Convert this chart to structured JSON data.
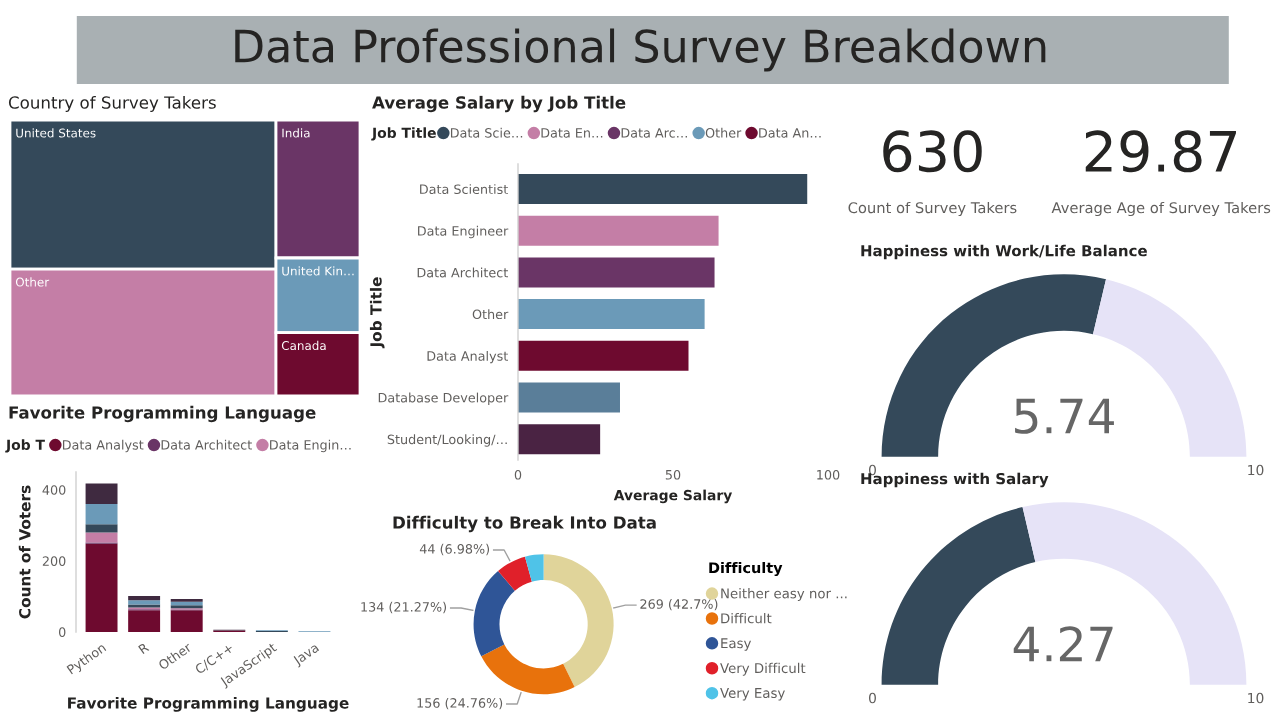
{
  "chart_data": [
    {
      "type": "other",
      "title": "Data Professional Survey Breakdown"
    },
    {
      "type": "other",
      "title": "Country of Survey Takers",
      "categories": [
        "United States",
        "Other",
        "India",
        "United Kin…",
        "Canada"
      ],
      "colors": [
        "#34495a",
        "#c47ea6",
        "#6a3566",
        "#6b9ab8",
        "#6e0a2f"
      ]
    },
    {
      "type": "bar",
      "orientation": "horizontal",
      "stacked": true,
      "title": "Average Salary by Job Title",
      "xlabel": "Average Salary",
      "ylabel": "Job Title",
      "legend_title": "Job Title",
      "legend": "top",
      "categories": [
        "Data Scientist",
        "Data Engineer",
        "Data Architect",
        "Other",
        "Data Analyst",
        "Database Developer",
        "Student/Looking/…"
      ],
      "xlim": [
        0,
        100
      ],
      "xticks": [
        0,
        50,
        100
      ],
      "series": [
        {
          "name": "Data Scie…",
          "color": "#34495a",
          "values": [
            93.3,
            null,
            null,
            null,
            null,
            null,
            null
          ]
        },
        {
          "name": "Data En…",
          "color": "#c47ea6",
          "values": [
            null,
            64.7,
            null,
            null,
            null,
            null,
            null
          ]
        },
        {
          "name": "Data Arc…",
          "color": "#6a3566",
          "values": [
            null,
            null,
            63.4,
            null,
            null,
            null,
            null
          ]
        },
        {
          "name": "Other",
          "color": "#6b9ab8",
          "values": [
            null,
            null,
            null,
            60.2,
            null,
            null,
            null
          ]
        },
        {
          "name": "Data An…",
          "color": "#6e0a2f",
          "values": [
            null,
            null,
            null,
            null,
            55.0,
            null,
            null
          ]
        },
        {
          "color": "#5a7e99",
          "values": [
            null,
            null,
            null,
            null,
            null,
            32.9,
            null
          ]
        },
        {
          "color": "#4a2343",
          "values": [
            null,
            null,
            null,
            null,
            null,
            null,
            26.5
          ]
        }
      ]
    },
    {
      "type": "other",
      "annotations": [
        "630",
        "Count of Survey Takers",
        "29.87",
        "Average Age of Survey Takers"
      ]
    },
    {
      "type": "other",
      "title": "Happiness with Work/Life Balance",
      "values": [
        5.74
      ],
      "colors": [
        "#34495a"
      ],
      "annotations": [
        "0",
        "10"
      ],
      "data_labels": true
    },
    {
      "type": "bar",
      "stacked": true,
      "title": "Favorite Programming Language",
      "xlabel": "Favorite Programming Language",
      "ylabel": "Count of Voters",
      "legend_title": "Job T",
      "legend": "top",
      "categories": [
        "Python",
        "R",
        "Other",
        "C/C++",
        "JavaScript",
        "Java"
      ],
      "ylim": [
        0,
        450
      ],
      "yticks": [
        0,
        200,
        400
      ],
      "series": [
        {
          "name": "Data Analyst",
          "color": "#6e0a2f",
          "values": [
            248,
            61,
            61,
            4,
            null,
            null
          ]
        },
        {
          "name": "Data Architect",
          "color": "#6a3566",
          "values": [
            4,
            3,
            2,
            null,
            null,
            null
          ]
        },
        {
          "name": "Data Engin…",
          "color": "#c47ea6",
          "values": [
            28,
            5,
            4,
            null,
            null,
            null
          ]
        },
        {
          "color": "#34495a",
          "values": [
            23,
            8,
            8,
            null,
            3,
            null
          ]
        },
        {
          "color": "#6b9ab8",
          "values": [
            57,
            12,
            10,
            null,
            2,
            2
          ]
        },
        {
          "color": "#3f2a40",
          "values": [
            58,
            12,
            8,
            2,
            null,
            null
          ]
        }
      ]
    },
    {
      "type": "donut",
      "title": "Difficulty to Break Into Data",
      "legend_title": "Difficulty",
      "legend": "right",
      "categories": [
        "Neither easy nor ...",
        "Difficult",
        "Easy",
        "Very Difficult",
        "Very Easy"
      ],
      "values": [
        269,
        156,
        134,
        44,
        27
      ],
      "colors": [
        "#e0d49a",
        "#e8720c",
        "#2f5597",
        "#e0202a",
        "#4fc3e8"
      ],
      "value_labels": [
        "269 (42.7%)",
        "156 (24.76%)",
        "134 (21.27%)",
        "44 (6.98%)",
        null
      ]
    },
    {
      "type": "other",
      "title": "Happiness with Salary",
      "values": [
        4.27
      ],
      "colors": [
        "#34495a"
      ],
      "annotations": [
        "0",
        "10"
      ],
      "data_labels": true
    }
  ]
}
